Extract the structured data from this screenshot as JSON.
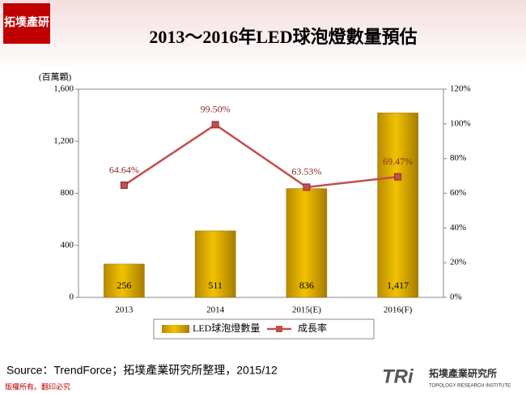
{
  "header": {
    "logo": "拓墣產研",
    "footer_note": "版權所有。翻印必究",
    "brand": "TRi",
    "brand_name": "拓墣產業研究所",
    "brand_en": "TOPOLOGY RESEARCH INSTITUTE"
  },
  "chart_data": {
    "type": "bar",
    "title": "2013～2016年LED球泡燈數量預估",
    "y_label": "(百萬顆)",
    "categories": [
      "2013",
      "2014",
      "2015(E)",
      "2016(F)"
    ],
    "series": [
      {
        "name": "LED球泡燈數量",
        "type": "bar",
        "color": "#d4a000",
        "values": [
          256,
          511,
          836,
          1417
        ],
        "value_labels": [
          "256",
          "511",
          "836",
          "1,417"
        ]
      },
      {
        "name": "成長率",
        "type": "line",
        "axis": "y2",
        "color": "#c0504d",
        "values": [
          64.64,
          99.5,
          63.53,
          69.47
        ],
        "value_labels": [
          "64.64%",
          "99.50%",
          "63.53%",
          "69.47%"
        ]
      }
    ],
    "ylim": [
      0,
      1600
    ],
    "yticks": [
      0,
      400,
      800,
      {
        "value": 1200,
        "label": "1,200"
      },
      {
        "value": 1600,
        "label": "1,600"
      }
    ],
    "y2lim": [
      0,
      120
    ],
    "y2ticks": [
      {
        "value": 0,
        "label": "0%"
      },
      {
        "value": 20,
        "label": "20%"
      },
      {
        "value": 40,
        "label": "40%"
      },
      {
        "value": 60,
        "label": "60%"
      },
      {
        "value": 80,
        "label": "80%"
      },
      {
        "value": 100,
        "label": "100%"
      },
      {
        "value": 120,
        "label": "120%"
      }
    ],
    "legend": "bottom",
    "source": "Source：TrendForce；拓墣產業研究所整理，2015/12"
  }
}
